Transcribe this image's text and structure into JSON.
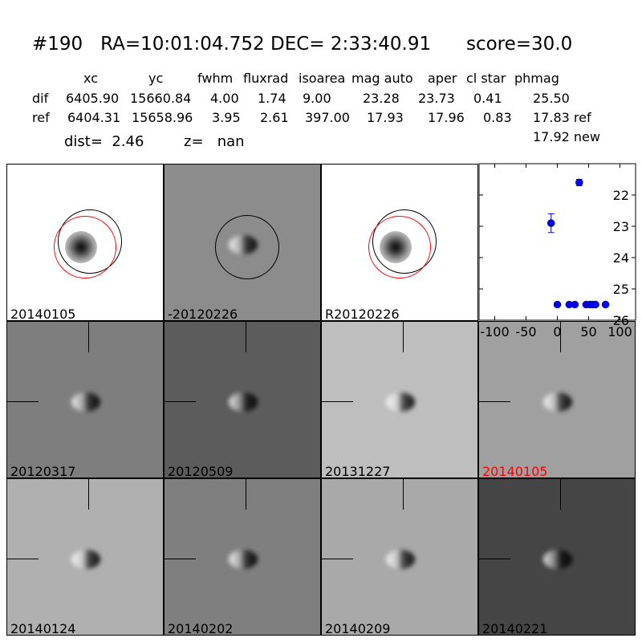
{
  "title": "#190   RA=10:01:04.752 DEC= 2:33:40.91      score=30.0",
  "table": {
    "headers": [
      "xc",
      "yc",
      "fwhm",
      "fluxrad",
      "isoarea",
      "mag auto",
      "aper",
      "cl star",
      "phmag"
    ],
    "rows": [
      {
        "label": "dif",
        "values": [
          "6405.90",
          "15660.84",
          "4.00",
          "1.74",
          "9.00",
          "23.28",
          "23.73",
          "0.41",
          "25.50"
        ]
      },
      {
        "label": "ref",
        "values": [
          "6404.31",
          "15658.96",
          "3.95",
          "2.61",
          "397.00",
          "17.93",
          "17.96",
          "0.83",
          "17.83 ref"
        ]
      }
    ],
    "extra": "17.92 new"
  },
  "dist": "dist=  2.46",
  "z": "z=   nan",
  "panels": [
    {
      "label": "20140105",
      "bg": "#ffffff"
    },
    {
      "label": "-20120226",
      "bg": "#8c8c8c"
    },
    {
      "label": "R20120226",
      "bg": "#ffffff"
    },
    {
      "label": "20120317",
      "bg": "#7e7e7e"
    },
    {
      "label": "20120509",
      "bg": "#5c5c5c"
    },
    {
      "label": "20131227",
      "bg": "#bebebe"
    },
    {
      "label": "20140105",
      "bg": "#a0a0a0",
      "color": "#ff0000"
    },
    {
      "label": "20140124",
      "bg": "#b0b0b0"
    },
    {
      "label": "20140202",
      "bg": "#7f7f7f"
    },
    {
      "label": "20140209",
      "bg": "#a9a9a9"
    },
    {
      "label": "20140221",
      "bg": "#454545"
    }
  ],
  "chart_data": {
    "type": "scatter",
    "xlim": [
      -125,
      125
    ],
    "ylim": [
      26,
      21
    ],
    "y_inverted": true,
    "xticks": [
      -100,
      -50,
      0,
      50,
      100
    ],
    "yticks": [
      22,
      23,
      24,
      25,
      26
    ],
    "color": "#0000ff",
    "points": [
      {
        "x": -10,
        "y": 22.9,
        "err": 0.3
      },
      {
        "x": 35,
        "y": 21.6,
        "err": 0.1
      },
      {
        "x": 0,
        "y": 25.5,
        "err": 0.05
      },
      {
        "x": 19,
        "y": 25.5,
        "err": 0.05
      },
      {
        "x": 28,
        "y": 25.5,
        "err": 0.05
      },
      {
        "x": 46,
        "y": 25.5,
        "err": 0.05
      },
      {
        "x": 52,
        "y": 25.5,
        "err": 0.05
      },
      {
        "x": 56,
        "y": 25.5,
        "err": 0.05
      },
      {
        "x": 61,
        "y": 25.5,
        "err": 0.05
      },
      {
        "x": 77,
        "y": 25.5,
        "err": 0.05
      }
    ]
  }
}
